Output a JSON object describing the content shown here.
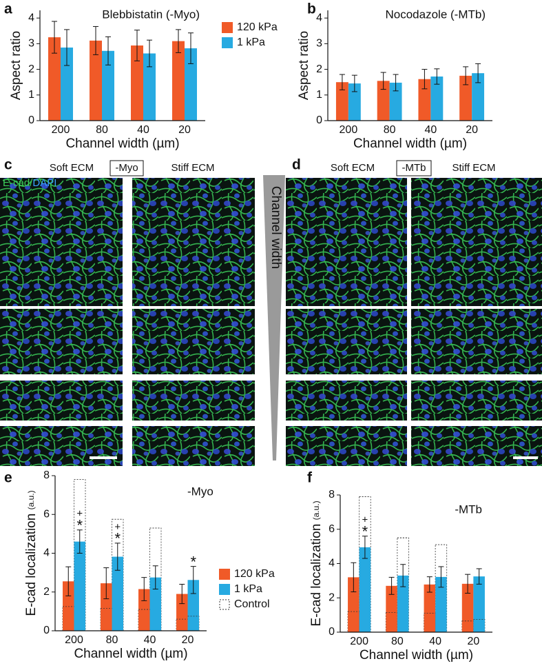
{
  "chart_data": [
    {
      "type": "bar",
      "title": "Blebbistatin (-Myo)",
      "categories": [
        "200",
        "80",
        "40",
        "20"
      ],
      "x_label": "Channel width (µm)",
      "y_label": "Aspect ratio",
      "series": [
        {
          "name": "120 kPa",
          "color": "#f05a28",
          "values": [
            3.25,
            3.12,
            2.93,
            3.1
          ],
          "errors": [
            0.62,
            0.55,
            0.6,
            0.45
          ]
        },
        {
          "name": "1 kPa",
          "color": "#27aae1",
          "values": [
            2.85,
            2.72,
            2.62,
            2.82
          ],
          "errors": [
            0.7,
            0.55,
            0.52,
            0.6
          ]
        }
      ],
      "ylim": [
        0,
        4.3
      ],
      "yticks": [
        0,
        1,
        2,
        3,
        4
      ],
      "legend": "right"
    },
    {
      "type": "bar",
      "title": "Nocodazole (-MTb)",
      "categories": [
        "200",
        "80",
        "40",
        "20"
      ],
      "x_label": "Channel width (µm)",
      "y_label": "Aspect ratio",
      "series": [
        {
          "name": "120 kPa",
          "color": "#f05a28",
          "values": [
            1.5,
            1.55,
            1.62,
            1.75
          ],
          "errors": [
            0.3,
            0.33,
            0.38,
            0.35
          ]
        },
        {
          "name": "1 kPa",
          "color": "#27aae1",
          "values": [
            1.45,
            1.48,
            1.72,
            1.85
          ],
          "errors": [
            0.32,
            0.32,
            0.3,
            0.37
          ]
        }
      ],
      "ylim": [
        0,
        4.3
      ],
      "yticks": [
        0,
        1,
        2,
        3,
        4
      ]
    },
    {
      "type": "bar",
      "label": "-Myo",
      "categories": [
        "200",
        "80",
        "40",
        "20"
      ],
      "x_label": "Channel width (µm)",
      "y_label": "E-cad localization",
      "y_label_unit": "(a.u.)",
      "series": [
        {
          "name": "120 kPa",
          "color": "#f05a28",
          "values": [
            2.55,
            2.45,
            2.15,
            1.9
          ],
          "errors": [
            0.75,
            0.8,
            0.6,
            0.5
          ]
        },
        {
          "name": "1 kPa",
          "color": "#27aae1",
          "values": [
            4.6,
            3.82,
            2.75,
            2.62
          ],
          "errors": [
            0.6,
            0.7,
            0.6,
            0.7
          ]
        }
      ],
      "control": {
        "name": "Control",
        "values_120kPa": [
          1.25,
          1.15,
          1.1,
          0.6
        ],
        "values_1kPa": [
          7.8,
          5.75,
          5.3,
          0.75
        ]
      },
      "annotations": [
        {
          "text": "*",
          "series": 1,
          "index": 0
        },
        {
          "text": "+",
          "series": 1,
          "index": 0
        },
        {
          "text": "*",
          "series": 1,
          "index": 1
        },
        {
          "text": "+",
          "series": 1,
          "index": 1
        },
        {
          "text": "*",
          "series": 1,
          "index": 3
        }
      ],
      "ylim": [
        0,
        8
      ],
      "yticks": [
        0,
        2,
        4,
        6,
        8
      ],
      "legend": "right"
    },
    {
      "type": "bar",
      "label": "-MTb",
      "categories": [
        "200",
        "80",
        "40",
        "20"
      ],
      "x_label": "Channel width (µm)",
      "y_label": "E-cad localization",
      "y_label_unit": "(a.u.)",
      "series": [
        {
          "name": "120 kPa",
          "color": "#f05a28",
          "values": [
            3.2,
            2.7,
            2.78,
            2.82
          ],
          "errors": [
            0.85,
            0.5,
            0.45,
            0.55
          ]
        },
        {
          "name": "1 kPa",
          "color": "#27aae1",
          "values": [
            4.95,
            3.3,
            3.22,
            3.25
          ],
          "errors": [
            0.65,
            0.65,
            0.6,
            0.45
          ]
        }
      ],
      "control": {
        "name": "Control",
        "values_120kPa": [
          1.2,
          1.15,
          1.1,
          0.65
        ],
        "values_1kPa": [
          7.9,
          5.5,
          5.1,
          0.75
        ]
      },
      "annotations": [
        {
          "text": "*",
          "series": 1,
          "index": 0
        },
        {
          "text": "+",
          "series": 1,
          "index": 0
        }
      ],
      "ylim": [
        0,
        8
      ],
      "yticks": [
        0,
        2,
        4,
        6,
        8
      ]
    }
  ],
  "figure": {
    "panel_letters": [
      "a",
      "b",
      "c",
      "d",
      "e",
      "f"
    ],
    "panel_c": {
      "left": "Soft ECM",
      "condition": "-Myo",
      "right": "Stiff ECM",
      "stain_1": "E-cad/",
      "stain_2": "DAPI"
    },
    "panel_d": {
      "left": "Soft ECM",
      "condition": "-MTb",
      "right": "Stiff ECM"
    },
    "wedge": "Channel width"
  }
}
